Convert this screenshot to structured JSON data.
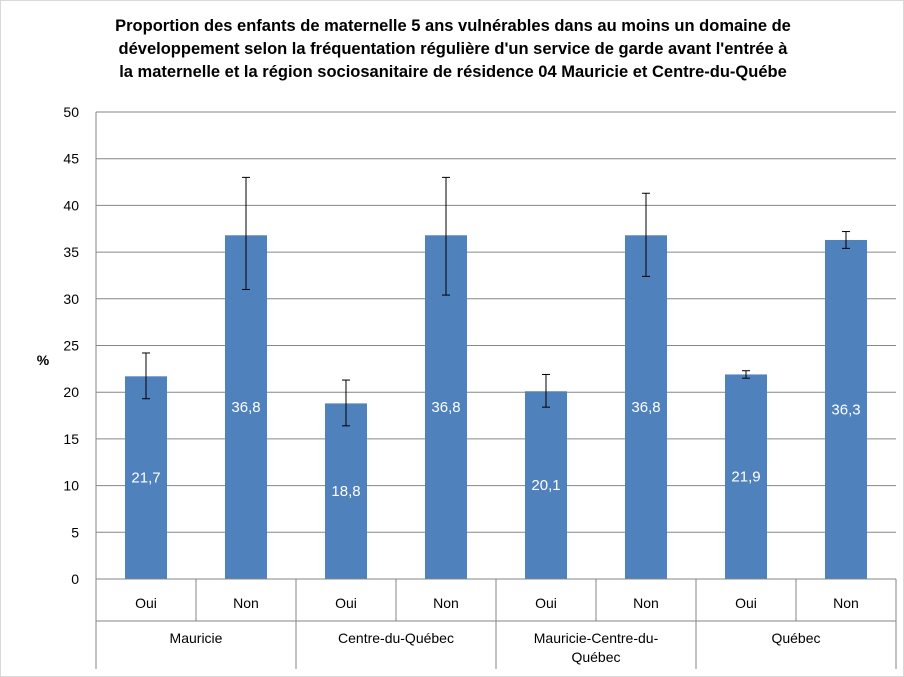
{
  "chart_data": {
    "type": "bar",
    "title": [
      "Proportion des enfants de maternelle 5 ans vulnérables dans au moins un domaine de",
      "développement selon la fréquentation régulière d'un service de garde avant l'entrée à",
      "la maternelle et la région sociosanitaire de résidence 04 Mauricie et Centre-du-Québe"
    ],
    "ylabel": "%",
    "ylim": [
      0,
      50
    ],
    "yticks": [
      0,
      5,
      10,
      15,
      20,
      25,
      30,
      35,
      40,
      45,
      50
    ],
    "grid": true,
    "legend": "none",
    "groups": [
      {
        "name_lines": [
          "Mauricie"
        ],
        "categories": [
          "Oui",
          "Non"
        ]
      },
      {
        "name_lines": [
          "Centre-du-Québec"
        ],
        "categories": [
          "Oui",
          "Non"
        ]
      },
      {
        "name_lines": [
          "Mauricie-Centre-du-",
          "Québec"
        ],
        "categories": [
          "Oui",
          "Non"
        ]
      },
      {
        "name_lines": [
          "Québec"
        ],
        "categories": [
          "Oui",
          "Non"
        ]
      }
    ],
    "categories": [
      "Oui",
      "Non",
      "Oui",
      "Non",
      "Oui",
      "Non",
      "Oui",
      "Non"
    ],
    "values": [
      21.7,
      36.8,
      18.8,
      36.8,
      20.1,
      36.8,
      21.9,
      36.3
    ],
    "value_labels": [
      "21,7",
      "36,8",
      "18,8",
      "36,8",
      "20,1",
      "36,8",
      "21,9",
      "36,3"
    ],
    "error_low": [
      19.3,
      31.0,
      16.4,
      30.4,
      18.4,
      32.4,
      21.5,
      35.4
    ],
    "error_high": [
      24.2,
      43.0,
      21.3,
      43.0,
      21.9,
      41.3,
      22.3,
      37.2
    ],
    "bar_color": "#4f81bd",
    "label_color": "#ffffff"
  }
}
